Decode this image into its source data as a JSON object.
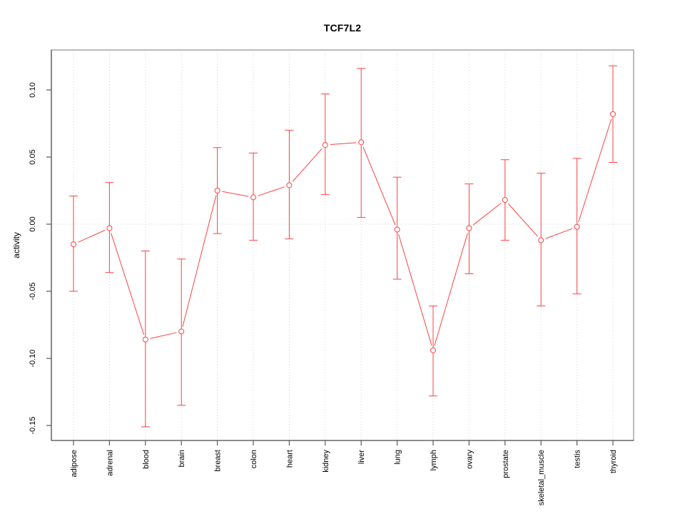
{
  "chart_data": {
    "type": "line",
    "title": "TCF7L2",
    "xlabel": "",
    "ylabel": "activity",
    "legend": "none",
    "categories": [
      "adipose",
      "adrenal",
      "blood",
      "brain",
      "breast",
      "colon",
      "heart",
      "kidney",
      "liver",
      "lung",
      "lymph",
      "ovary",
      "prostate",
      "skeletal_muscle",
      "testis",
      "thyroid"
    ],
    "series": [
      {
        "name": "TCF7L2 activity",
        "marker": "open-circle",
        "values": [
          -0.015,
          -0.003,
          -0.086,
          -0.08,
          0.025,
          0.02,
          0.029,
          0.059,
          0.061,
          -0.004,
          -0.094,
          -0.003,
          0.018,
          -0.012,
          -0.002,
          0.082
        ],
        "error_high": [
          0.021,
          0.031,
          -0.02,
          -0.026,
          0.057,
          0.053,
          0.07,
          0.097,
          0.116,
          0.035,
          -0.061,
          0.03,
          0.048,
          0.038,
          0.049,
          0.118
        ],
        "error_low": [
          -0.05,
          -0.036,
          -0.151,
          -0.135,
          -0.007,
          -0.012,
          -0.011,
          0.022,
          0.005,
          -0.041,
          -0.128,
          -0.037,
          -0.012,
          -0.061,
          -0.052,
          0.046
        ]
      }
    ],
    "yticks": {
      "labels": [
        "0.10",
        "0.05",
        "0.00",
        "-0.05",
        "-0.10",
        "-0.15"
      ],
      "values": [
        0.1,
        0.05,
        0.0,
        -0.05,
        -0.1,
        -0.15
      ]
    },
    "ylim": [
      -0.161,
      0.13
    ],
    "grid": {
      "vertical": "dotted line at every category tick",
      "horizontal": "dotted line at y=0 only"
    },
    "colors": {
      "series": "#fb4242",
      "marker_fill": "#ffffff",
      "grid": "#d2d2d2",
      "box": "#989898",
      "axis": "#5a5a5a",
      "text": "#000000",
      "background": "#ffffff"
    }
  }
}
